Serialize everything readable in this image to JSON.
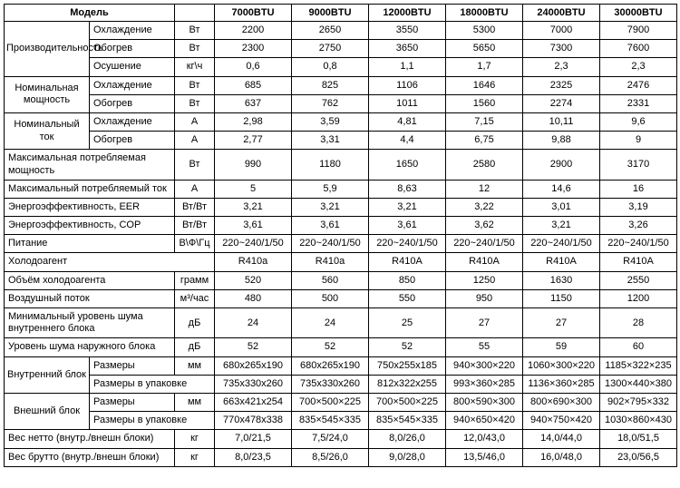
{
  "header": {
    "model": "Модель",
    "cols": [
      "7000BTU",
      "9000BTU",
      "12000BTU",
      "18000BTU",
      "24000BTU",
      "30000BTU"
    ]
  },
  "units": {
    "vt": "Вт",
    "kvch": "кг\\ч",
    "a": "А",
    "vtvt": "Вт/Вт",
    "vfgc": "В\\Ф\\Гц",
    "gram": "грамм",
    "m3h": "м³/час",
    "db": "дБ",
    "mm": "мм",
    "kg": "кг"
  },
  "labels": {
    "perf": "Производительность",
    "cool": "Охлаждение",
    "heat": "Обогрев",
    "dry": "Осушение",
    "nomPower": "Номинальная мощность",
    "nomCurrent": "Номинальный ток",
    "maxPower": "Максимальная потребляемая мощность",
    "maxCurrent": "Максимальный потребляемый ток",
    "eer": "Энергоэффективность, EER",
    "cop": "Энергоэффективность, COP",
    "supply": "Питание",
    "refrigerant": "Холодоагент",
    "refrigerantVol": "Объём холодоагента",
    "airflow": "Воздушный поток",
    "minNoiseIndoor": "Минимальный уровень шума внутреннего блока",
    "noiseOutdoor": "Уровень шума наружного блока",
    "indoorUnit": "Внутренний блок",
    "outdoorUnit": "Внешний блок",
    "dims": "Размеры",
    "dimsPack": "Размеры в упаковке",
    "net": "Вес нетто (внутр./внешн блоки)",
    "gross": "Вес брутто (внутр./внешн блоки)"
  },
  "rows": {
    "perfCool": [
      "2200",
      "2650",
      "3550",
      "5300",
      "7000",
      "7900"
    ],
    "perfHeat": [
      "2300",
      "2750",
      "3650",
      "5650",
      "7300",
      "7600"
    ],
    "perfDry": [
      "0,6",
      "0,8",
      "1,1",
      "1,7",
      "2,3",
      "2,3"
    ],
    "npCool": [
      "685",
      "825",
      "1106",
      "1646",
      "2325",
      "2476"
    ],
    "npHeat": [
      "637",
      "762",
      "1011",
      "1560",
      "2274",
      "2331"
    ],
    "ncCool": [
      "2,98",
      "3,59",
      "4,81",
      "7,15",
      "10,11",
      "9,6"
    ],
    "ncHeat": [
      "2,77",
      "3,31",
      "4,4",
      "6,75",
      "9,88",
      "9"
    ],
    "maxPower": [
      "990",
      "1180",
      "1650",
      "2580",
      "2900",
      "3170"
    ],
    "maxCurrent": [
      "5",
      "5,9",
      "8,63",
      "12",
      "14,6",
      "16"
    ],
    "eer": [
      "3,21",
      "3,21",
      "3,21",
      "3,22",
      "3,01",
      "3,19"
    ],
    "cop": [
      "3,61",
      "3,61",
      "3,61",
      "3,62",
      "3,21",
      "3,26"
    ],
    "supply": [
      "220~240/1/50",
      "220~240/1/50",
      "220~240/1/50",
      "220~240/1/50",
      "220~240/1/50",
      "220~240/1/50"
    ],
    "refrigerant": [
      "R410a",
      "R410a",
      "R410A",
      "R410A",
      "R410A",
      "R410A"
    ],
    "refVol": [
      "520",
      "560",
      "850",
      "1250",
      "1630",
      "2550"
    ],
    "airflow": [
      "480",
      "500",
      "550",
      "950",
      "1150",
      "1200"
    ],
    "minNoise": [
      "24",
      "24",
      "25",
      "27",
      "27",
      "28"
    ],
    "noiseOut": [
      "52",
      "52",
      "52",
      "55",
      "59",
      "60"
    ],
    "inDims": [
      "680x265x190",
      "680x265x190",
      "750x255x185",
      "940×300×220",
      "1060×300×220",
      "1185×322×235"
    ],
    "inDimsPack": [
      "735x330x260",
      "735x330x260",
      "812x322x255",
      "993×360×285",
      "1136×360×285",
      "1300×440×380"
    ],
    "outDims": [
      "663x421x254",
      "700×500×225",
      "700×500×225",
      "800×590×300",
      "800×690×300",
      "902×795×332"
    ],
    "outDimsPack": [
      "770x478x338",
      "835×545×335",
      "835×545×335",
      "940×650×420",
      "940×750×420",
      "1030×860×430"
    ],
    "net": [
      "7,0/21,5",
      "7,5/24,0",
      "8,0/26,0",
      "12,0/43,0",
      "14,0/44,0",
      "18,0/51,5"
    ],
    "gross": [
      "8,0/23,5",
      "8,5/26,0",
      "9,0/28,0",
      "13,5/46,0",
      "16,0/48,0",
      "23,0/56,5"
    ]
  }
}
